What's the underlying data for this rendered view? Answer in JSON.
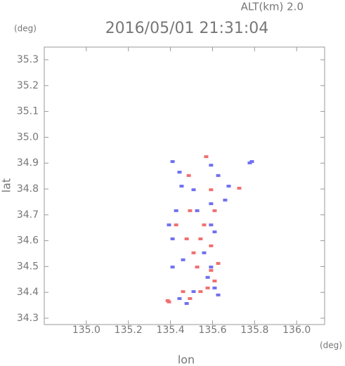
{
  "chart_data": {
    "type": "scatter",
    "title": "2016/05/01 21:31:04",
    "subtitle": "ALT(km) 2.0",
    "y_unit": "(deg)",
    "x_unit": "(deg)",
    "xlabel": "lon",
    "ylabel": "lat",
    "xlim": [
      134.8,
      136.133
    ],
    "ylim": [
      34.2755,
      35.349
    ],
    "xticks": [
      {
        "value": 135,
        "label": "135.0"
      },
      135.2,
      135.4,
      135.6,
      135.8,
      {
        "value": 136,
        "label": "136.0"
      }
    ],
    "yticks": [
      34.3,
      34.4,
      34.5,
      34.6,
      34.7,
      34.8,
      34.9,
      {
        "value": 35,
        "label": "35.0"
      },
      35.1,
      35.2,
      35.3
    ],
    "series": [
      {
        "color": "#f07070",
        "x": [
          135.57,
          135.487,
          135.593,
          135.727,
          135.543,
          135.593,
          135.527,
          135.593,
          135.577,
          135.61,
          135.543,
          135.46,
          135.393,
          135.493,
          135.387,
          135.627,
          135.51,
          135.56,
          135.493,
          135.61,
          135.427,
          135.477
        ],
        "y": [
          34.925,
          34.852,
          34.797,
          34.803,
          34.607,
          34.58,
          34.498,
          34.485,
          34.417,
          34.444,
          34.403,
          34.403,
          34.363,
          34.376,
          34.368,
          34.512,
          34.553,
          34.661,
          34.716,
          34.716,
          34.661,
          34.607
        ]
      },
      {
        "color": "#7070f0",
        "x": [
          135.41,
          135.443,
          135.593,
          135.777,
          135.787,
          135.627,
          135.677,
          135.453,
          135.51,
          135.393,
          135.41,
          135.593,
          135.61,
          135.56,
          135.46,
          135.593,
          135.41,
          135.577,
          135.61,
          135.51,
          135.627,
          135.477,
          135.443,
          135.66,
          135.527,
          135.427,
          135.593
        ],
        "y": [
          34.906,
          34.865,
          34.892,
          34.901,
          34.906,
          34.852,
          34.811,
          34.811,
          34.797,
          34.661,
          34.607,
          34.661,
          34.634,
          34.553,
          34.526,
          34.498,
          34.498,
          34.458,
          34.417,
          34.403,
          34.39,
          34.357,
          34.376,
          34.757,
          34.716,
          34.716,
          34.743
        ]
      }
    ]
  }
}
